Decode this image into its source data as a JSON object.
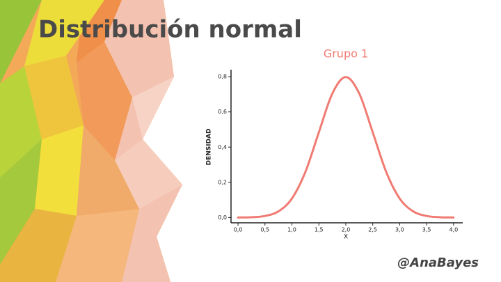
{
  "slide": {
    "title": "Distribución normal",
    "author": "@AnaBayes"
  },
  "chart_data": {
    "type": "line",
    "title": "Grupo 1",
    "x_label": "X",
    "y_label": "DENSIDAD",
    "x": [
      0,
      0.25,
      0.5,
      0.75,
      1.0,
      1.25,
      1.5,
      1.75,
      2.0,
      2.25,
      2.5,
      2.75,
      3.0,
      3.25,
      3.5,
      3.75,
      4.0
    ],
    "values": [
      0.0003,
      0.0017,
      0.0089,
      0.035,
      0.108,
      0.259,
      0.484,
      0.704,
      0.798,
      0.704,
      0.484,
      0.259,
      0.108,
      0.035,
      0.0089,
      0.0017,
      0.0003
    ],
    "color": "#f07b72",
    "xlim": [
      -0.13,
      4.17
    ],
    "ylim": [
      -0.03,
      0.84
    ],
    "xticks": [
      {
        "value": 0,
        "label": "0,0"
      },
      {
        "value": 0.5,
        "label": "0,5"
      },
      {
        "value": 1,
        "label": "1,0"
      },
      {
        "value": 1.5,
        "label": "1,5"
      },
      {
        "value": 2,
        "label": "2,0"
      },
      {
        "value": 2.5,
        "label": "2,5"
      },
      {
        "value": 3,
        "label": "3,0"
      },
      {
        "value": 3.5,
        "label": "3,5"
      },
      {
        "value": 4,
        "label": "4,0"
      }
    ],
    "yticks": [
      {
        "value": 0,
        "label": "0,0"
      },
      {
        "value": 0.2,
        "label": "0,2"
      },
      {
        "value": 0.4,
        "label": "0,4"
      },
      {
        "value": 0.6,
        "label": "0,6"
      },
      {
        "value": 0.8,
        "label": "0,8"
      }
    ],
    "grid": false
  }
}
